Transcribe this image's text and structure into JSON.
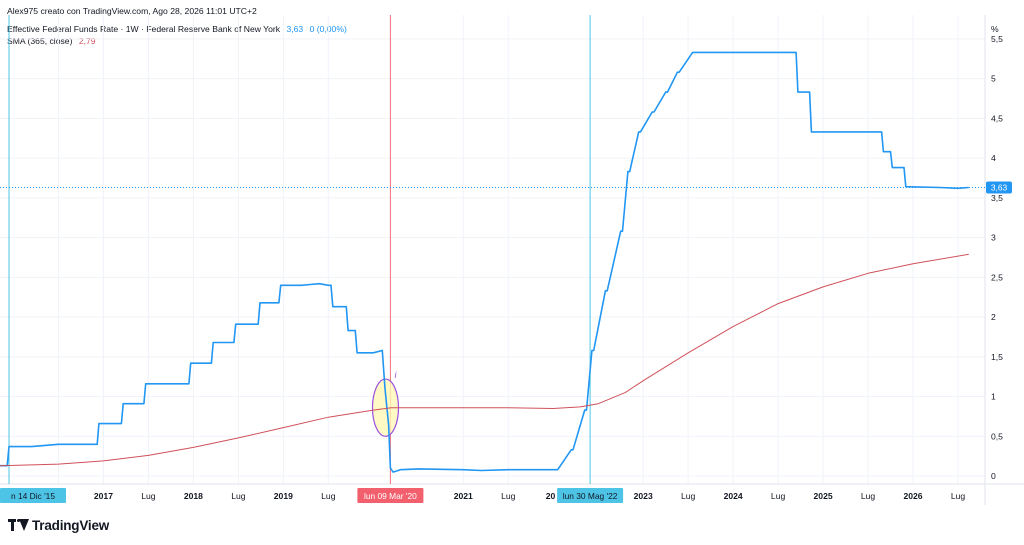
{
  "header": {
    "credit": "Alex975 creato con TradingView.com, Ago 28, 2026 11:01 UTC+2",
    "series_title": "Effective Federal Funds Rate · 1W · Federal Reserve Bank of New York",
    "series_value": "3,63",
    "series_change": "0 (0,00%)",
    "sma_title": "SMA (365, close)",
    "sma_value": "2,79"
  },
  "logo": {
    "text": "TradingView",
    "icon": "tradingview-logo-icon"
  },
  "colors": {
    "series": "#2196f3",
    "sma": "#d0505a",
    "vline_red": "#f0707a",
    "vline_blue": "#4dc4e6",
    "tag_blue": "#4dc4e6",
    "tag_red": "#f2606e",
    "annot": "#9c4fe0",
    "annot_fill": "#fff7b8"
  },
  "chart_data": {
    "type": "line",
    "ylabel_unit": "%",
    "ylim": [
      -0.1,
      5.8
    ],
    "y_ticks": [
      "0",
      "0,5",
      "1",
      "1,5",
      "2",
      "2,5",
      "3",
      "3,5",
      "4",
      "4,5",
      "5",
      "5,5"
    ],
    "y_tick_values": [
      0,
      0.5,
      1,
      1.5,
      2,
      2.5,
      3,
      3.5,
      4,
      4.5,
      5,
      5.5
    ],
    "x_range": [
      2015.85,
      2026.8
    ],
    "x_ticks": [
      {
        "label": "Lug",
        "x": 2016.5,
        "bold": false
      },
      {
        "label": "2017",
        "x": 2017.0,
        "bold": true
      },
      {
        "label": "Lug",
        "x": 2017.5,
        "bold": false
      },
      {
        "label": "2018",
        "x": 2018.0,
        "bold": true
      },
      {
        "label": "Lug",
        "x": 2018.5,
        "bold": false
      },
      {
        "label": "2019",
        "x": 2019.0,
        "bold": true
      },
      {
        "label": "Lug",
        "x": 2019.5,
        "bold": false
      },
      {
        "label": "2021",
        "x": 2021.0,
        "bold": true
      },
      {
        "label": "Lug",
        "x": 2021.5,
        "bold": false
      },
      {
        "label": "2023",
        "x": 2023.0,
        "bold": true
      },
      {
        "label": "Lug",
        "x": 2023.5,
        "bold": false
      },
      {
        "label": "2024",
        "x": 2024.0,
        "bold": true
      },
      {
        "label": "Lug",
        "x": 2024.5,
        "bold": false
      },
      {
        "label": "2025",
        "x": 2025.0,
        "bold": true
      },
      {
        "label": "Lug",
        "x": 2025.5,
        "bold": false
      },
      {
        "label": "2026",
        "x": 2026.0,
        "bold": true
      },
      {
        "label": "Lug",
        "x": 2026.5,
        "bold": false
      }
    ],
    "series": [
      {
        "name": "Effective Federal Funds Rate",
        "x": [
          2015.85,
          2015.93,
          2015.95,
          2016.0,
          2016.1,
          2016.2,
          2016.5,
          2016.93,
          2016.95,
          2017.2,
          2017.22,
          2017.45,
          2017.47,
          2017.95,
          2017.97,
          2018.2,
          2018.22,
          2018.45,
          2018.47,
          2018.72,
          2018.74,
          2018.95,
          2018.97,
          2019.2,
          2019.3,
          2019.4,
          2019.5,
          2019.53,
          2019.55,
          2019.7,
          2019.72,
          2019.8,
          2019.82,
          2020.0,
          2020.1,
          2020.13,
          2020.17,
          2020.19,
          2020.22,
          2020.3,
          2020.5,
          2021.0,
          2021.2,
          2021.5,
          2021.8,
          2022.05,
          2022.2,
          2022.22,
          2022.35,
          2022.37,
          2022.43,
          2022.45,
          2022.58,
          2022.6,
          2022.75,
          2022.77,
          2022.83,
          2022.85,
          2022.95,
          2022.97,
          2023.1,
          2023.12,
          2023.25,
          2023.27,
          2023.38,
          2023.4,
          2023.55,
          2023.57,
          2024.7,
          2024.72,
          2024.85,
          2024.87,
          2025.65,
          2025.67,
          2025.75,
          2025.77,
          2025.9,
          2025.92,
          2026.3,
          2026.5,
          2026.62
        ],
        "values": [
          0.13,
          0.13,
          0.37,
          0.37,
          0.37,
          0.37,
          0.4,
          0.4,
          0.66,
          0.66,
          0.91,
          0.91,
          1.16,
          1.16,
          1.42,
          1.42,
          1.68,
          1.68,
          1.91,
          1.91,
          2.18,
          2.18,
          2.4,
          2.4,
          2.41,
          2.42,
          2.4,
          2.4,
          2.13,
          2.13,
          1.83,
          1.83,
          1.55,
          1.55,
          1.58,
          1.1,
          0.65,
          0.1,
          0.05,
          0.08,
          0.09,
          0.08,
          0.07,
          0.08,
          0.08,
          0.08,
          0.33,
          0.33,
          0.83,
          0.83,
          1.58,
          1.58,
          2.33,
          2.33,
          3.08,
          3.08,
          3.83,
          3.83,
          4.33,
          4.33,
          4.58,
          4.58,
          4.83,
          4.83,
          5.08,
          5.08,
          5.33,
          5.33,
          5.33,
          4.83,
          4.83,
          4.33,
          4.33,
          4.08,
          4.08,
          3.88,
          3.88,
          3.64,
          3.63,
          3.62,
          3.63
        ]
      },
      {
        "name": "SMA (365, close)",
        "x": [
          2015.85,
          2016.5,
          2017.0,
          2017.5,
          2018.0,
          2018.5,
          2019.0,
          2019.5,
          2020.0,
          2020.2,
          2020.5,
          2021.0,
          2021.5,
          2022.0,
          2022.3,
          2022.5,
          2022.8,
          2023.0,
          2023.5,
          2024.0,
          2024.5,
          2025.0,
          2025.5,
          2026.0,
          2026.62
        ],
        "values": [
          0.13,
          0.15,
          0.19,
          0.26,
          0.36,
          0.48,
          0.61,
          0.74,
          0.83,
          0.86,
          0.86,
          0.86,
          0.86,
          0.85,
          0.87,
          0.91,
          1.05,
          1.2,
          1.55,
          1.88,
          2.17,
          2.38,
          2.55,
          2.67,
          2.79
        ]
      }
    ],
    "price_tag": {
      "value": 3.63,
      "label": "3,63"
    },
    "markers": [
      {
        "x": 2015.95,
        "label": "n 14 Dic '15",
        "color": "blue"
      },
      {
        "x": 2020.19,
        "label": "lun 09 Mar '20",
        "color": "red"
      },
      {
        "x": 2022.41,
        "label": "lun 30 Mag '22",
        "color": "blue"
      }
    ],
    "partial_label_2022": "20",
    "annotation": {
      "x": 2020.18,
      "y_low": 0.5,
      "y_high": 1.22,
      "text": "i"
    }
  }
}
